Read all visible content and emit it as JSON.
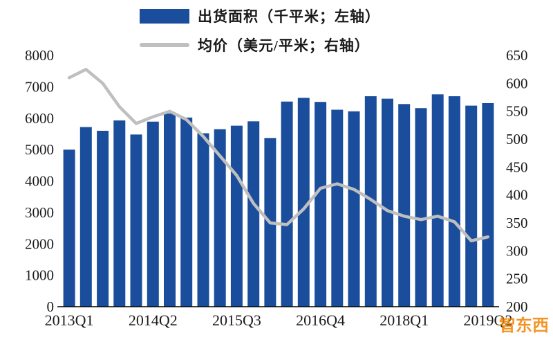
{
  "legend": [
    {
      "label": "出货面积（千平米；左轴）",
      "type": "bar",
      "color": "#1a4e9d"
    },
    {
      "label": "均价（美元/平米；右轴）",
      "type": "line",
      "color": "#bfbfbf"
    }
  ],
  "watermark": {
    "logo_char": "智",
    "text": "智东西"
  },
  "chart_data": {
    "type": "bar",
    "title": "",
    "xlabel": "",
    "ylabel_left": "出货面积（千平米）",
    "ylabel_right": "均价（美元/平米）",
    "grid": false,
    "legend_position": "top",
    "categories": [
      "2013Q1",
      "2013Q2",
      "2013Q3",
      "2013Q4",
      "2014Q1",
      "2014Q2",
      "2014Q3",
      "2014Q4",
      "2015Q1",
      "2015Q2",
      "2015Q3",
      "2015Q4",
      "2016Q1",
      "2016Q2",
      "2016Q3",
      "2016Q4",
      "2017Q1",
      "2017Q2",
      "2017Q3",
      "2017Q4",
      "2018Q1",
      "2018Q2",
      "2018Q3",
      "2018Q4",
      "2019Q1",
      "2019Q2"
    ],
    "series": [
      {
        "name": "出货面积（千平米；左轴）",
        "type": "bar",
        "axis": "left",
        "color": "#1a4e9d",
        "values": [
          5000,
          5720,
          5600,
          5930,
          5480,
          5890,
          6150,
          6020,
          5520,
          5650,
          5760,
          5900,
          5370,
          6530,
          6650,
          6520,
          6270,
          6220,
          6700,
          6620,
          6450,
          6320,
          6760,
          6700,
          6400,
          6480
        ]
      },
      {
        "name": "均价（美元/平米；右轴）",
        "type": "line",
        "axis": "right",
        "color": "#bfbfbf",
        "values": [
          610,
          625,
          600,
          558,
          528,
          540,
          550,
          535,
          505,
          470,
          435,
          385,
          350,
          347,
          375,
          412,
          420,
          410,
          392,
          372,
          362,
          356,
          362,
          352,
          318,
          325
        ]
      }
    ],
    "left_axis": {
      "min": 0,
      "max": 8000,
      "step": 1000,
      "ticks": [
        "0",
        "1000",
        "2000",
        "3000",
        "4000",
        "5000",
        "6000",
        "7000",
        "8000"
      ]
    },
    "right_axis": {
      "min": 200,
      "max": 650,
      "step": 50,
      "ticks": [
        "200",
        "250",
        "300",
        "350",
        "400",
        "450",
        "500",
        "550",
        "600",
        "650"
      ]
    },
    "x_tick_labels": [
      "2013Q1",
      "2014Q2",
      "2015Q3",
      "2016Q4",
      "2018Q1",
      "2019Q2"
    ],
    "x_tick_indices": [
      0,
      5,
      10,
      15,
      20,
      25
    ]
  }
}
